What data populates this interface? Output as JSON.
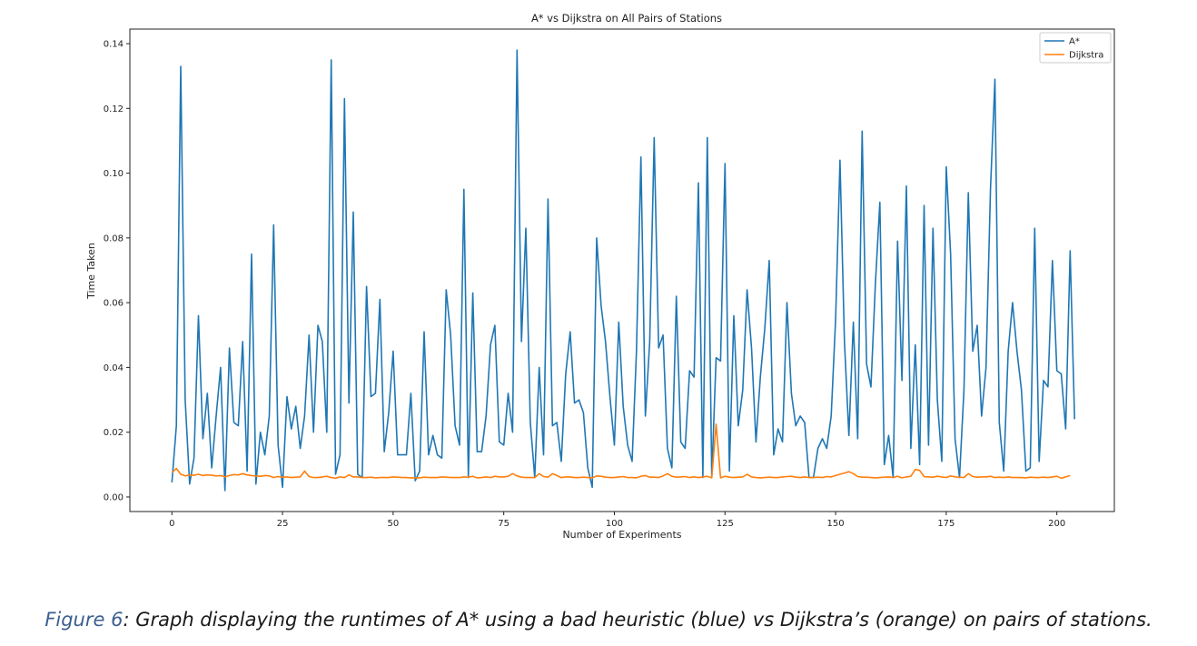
{
  "chart_data": {
    "type": "line",
    "title": "A* vs Dijkstra on All Pairs of Stations",
    "xlabel": "Number of Experiments",
    "ylabel": "Time Taken",
    "xlim": [
      -9.5,
      213
    ],
    "ylim": [
      -0.0045,
      0.1445
    ],
    "xticks": [
      0,
      25,
      50,
      75,
      100,
      125,
      150,
      175,
      200
    ],
    "xtick_labels": [
      "0",
      "25",
      "50",
      "75",
      "100",
      "125",
      "150",
      "175",
      "200"
    ],
    "yticks": [
      0.0,
      0.02,
      0.04,
      0.06,
      0.08,
      0.1,
      0.12,
      0.14
    ],
    "ytick_labels": [
      "0.00",
      "0.02",
      "0.04",
      "0.06",
      "0.08",
      "0.10",
      "0.12",
      "0.14"
    ],
    "grid": false,
    "legend_position": "top-right",
    "series": [
      {
        "name": "A*",
        "color": "#1f77b4",
        "values": [
          0.0045,
          0.022,
          0.133,
          0.03,
          0.004,
          0.012,
          0.056,
          0.018,
          0.032,
          0.009,
          0.025,
          0.04,
          0.002,
          0.046,
          0.023,
          0.022,
          0.048,
          0.008,
          0.075,
          0.004,
          0.02,
          0.013,
          0.025,
          0.084,
          0.016,
          0.003,
          0.031,
          0.021,
          0.028,
          0.015,
          0.025,
          0.05,
          0.02,
          0.053,
          0.048,
          0.02,
          0.135,
          0.007,
          0.013,
          0.123,
          0.029,
          0.088,
          0.007,
          0.006,
          0.065,
          0.031,
          0.032,
          0.061,
          0.014,
          0.026,
          0.045,
          0.013,
          0.013,
          0.013,
          0.032,
          0.005,
          0.008,
          0.051,
          0.013,
          0.019,
          0.013,
          0.012,
          0.064,
          0.05,
          0.022,
          0.016,
          0.095,
          0.006,
          0.063,
          0.014,
          0.014,
          0.025,
          0.047,
          0.053,
          0.017,
          0.016,
          0.032,
          0.02,
          0.138,
          0.048,
          0.083,
          0.023,
          0.006,
          0.04,
          0.013,
          0.092,
          0.022,
          0.023,
          0.011,
          0.038,
          0.051,
          0.029,
          0.03,
          0.026,
          0.009,
          0.003,
          0.08,
          0.059,
          0.048,
          0.031,
          0.016,
          0.054,
          0.028,
          0.016,
          0.011,
          0.045,
          0.105,
          0.025,
          0.048,
          0.111,
          0.046,
          0.05,
          0.015,
          0.009,
          0.062,
          0.017,
          0.015,
          0.039,
          0.037,
          0.097,
          0.006,
          0.111,
          0.006,
          0.043,
          0.042,
          0.103,
          0.008,
          0.056,
          0.022,
          0.033,
          0.064,
          0.046,
          0.017,
          0.037,
          0.052,
          0.073,
          0.013,
          0.021,
          0.017,
          0.06,
          0.032,
          0.022,
          0.025,
          0.023,
          0.006,
          0.006,
          0.015,
          0.018,
          0.015,
          0.025,
          0.055,
          0.104,
          0.048,
          0.019,
          0.054,
          0.018,
          0.113,
          0.041,
          0.034,
          0.066,
          0.091,
          0.01,
          0.019,
          0.006,
          0.079,
          0.036,
          0.096,
          0.015,
          0.047,
          0.01,
          0.09,
          0.016,
          0.083,
          0.03,
          0.011,
          0.102,
          0.075,
          0.018,
          0.006,
          0.033,
          0.094,
          0.045,
          0.053,
          0.025,
          0.04,
          0.095,
          0.129,
          0.023,
          0.008,
          0.045,
          0.06,
          0.045,
          0.033,
          0.008,
          0.009,
          0.083,
          0.011,
          0.036,
          0.034,
          0.073,
          0.039,
          0.038,
          0.021,
          0.076,
          0.024
        ]
      },
      {
        "name": "Dijkstra",
        "color": "#ff7f0e",
        "values": [
          0.0075,
          0.0088,
          0.007,
          0.0065,
          0.0068,
          0.0067,
          0.007,
          0.0066,
          0.0068,
          0.0067,
          0.0065,
          0.0066,
          0.0062,
          0.0066,
          0.0069,
          0.0068,
          0.0072,
          0.0068,
          0.0066,
          0.0065,
          0.0064,
          0.0066,
          0.0065,
          0.006,
          0.0063,
          0.0061,
          0.0062,
          0.006,
          0.0061,
          0.0062,
          0.008,
          0.0063,
          0.006,
          0.006,
          0.0062,
          0.0064,
          0.006,
          0.0058,
          0.0062,
          0.006,
          0.0068,
          0.0062,
          0.0062,
          0.006,
          0.006,
          0.0061,
          0.0059,
          0.006,
          0.006,
          0.006,
          0.0062,
          0.0061,
          0.006,
          0.006,
          0.0059,
          0.0059,
          0.0059,
          0.0061,
          0.006,
          0.006,
          0.006,
          0.0062,
          0.0061,
          0.006,
          0.006,
          0.006,
          0.0062,
          0.0061,
          0.0064,
          0.0059,
          0.006,
          0.0062,
          0.006,
          0.0064,
          0.0062,
          0.0062,
          0.0064,
          0.0072,
          0.0065,
          0.0061,
          0.006,
          0.006,
          0.006,
          0.0072,
          0.0063,
          0.0061,
          0.0072,
          0.0066,
          0.006,
          0.0062,
          0.0062,
          0.006,
          0.006,
          0.0061,
          0.006,
          0.0059,
          0.0065,
          0.0064,
          0.0061,
          0.006,
          0.006,
          0.0062,
          0.0063,
          0.006,
          0.006,
          0.0059,
          0.0064,
          0.0066,
          0.0061,
          0.0061,
          0.006,
          0.0065,
          0.0072,
          0.0064,
          0.0061,
          0.0062,
          0.0063,
          0.006,
          0.0062,
          0.006,
          0.0062,
          0.0064,
          0.0059,
          0.0225,
          0.0059,
          0.0064,
          0.0061,
          0.006,
          0.0061,
          0.0062,
          0.007,
          0.0062,
          0.006,
          0.0059,
          0.006,
          0.0061,
          0.006,
          0.006,
          0.0062,
          0.0063,
          0.0064,
          0.0061,
          0.006,
          0.0062,
          0.006,
          0.006,
          0.0061,
          0.006,
          0.0063,
          0.0062,
          0.0066,
          0.007,
          0.0074,
          0.0078,
          0.0072,
          0.0063,
          0.0061,
          0.0061,
          0.006,
          0.0059,
          0.006,
          0.0061,
          0.0062,
          0.006,
          0.0064,
          0.0059,
          0.0062,
          0.0064,
          0.0085,
          0.0082,
          0.0063,
          0.0062,
          0.0061,
          0.0064,
          0.0062,
          0.006,
          0.0065,
          0.0062,
          0.0061,
          0.006,
          0.0072,
          0.0063,
          0.0061,
          0.0062,
          0.0062,
          0.0064,
          0.006,
          0.0061,
          0.006,
          0.0062,
          0.006,
          0.006,
          0.006,
          0.0059,
          0.0061,
          0.006,
          0.006,
          0.0061,
          0.006,
          0.0062,
          0.0064,
          0.0058,
          0.0062,
          0.0066
        ]
      }
    ]
  },
  "caption": {
    "label": "Figure 6",
    "text": ": Graph displaying the runtimes of A* using a bad heuristic (blue) vs Dijkstra’s (orange) on pairs of stations."
  }
}
